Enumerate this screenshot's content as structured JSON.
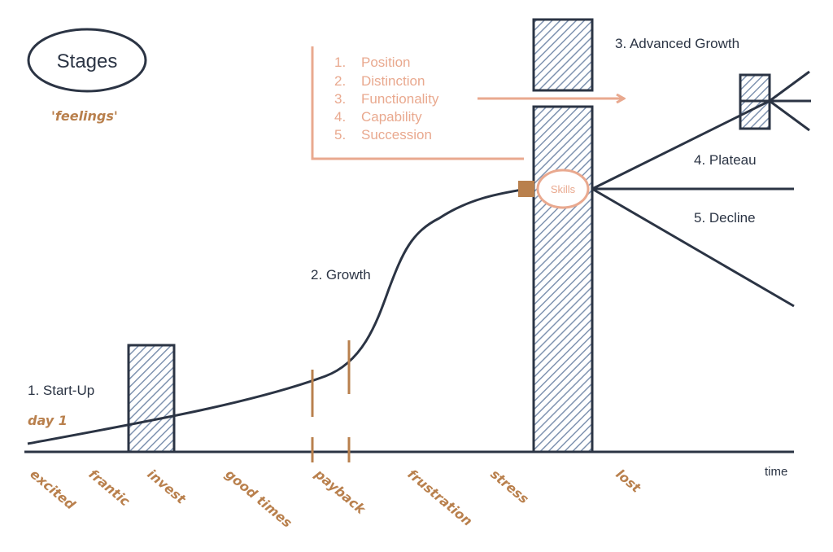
{
  "title": "Stages",
  "subtitle": "'feelings'",
  "stages": {
    "startup": "1. Start-Up",
    "growth": "2. Growth",
    "advanced_growth": "3. Advanced Growth",
    "plateau": "4. Plateau",
    "decline": "5. Decline"
  },
  "day_label": "day 1",
  "list": {
    "numbers": [
      "1.",
      "2.",
      "3.",
      "4.",
      "5."
    ],
    "items": [
      "Position",
      "Distinction",
      "Functionality",
      "Capability",
      "Succession"
    ]
  },
  "skills_label": "Skills",
  "axis": {
    "x_label": "time"
  },
  "feelings": [
    "excited",
    "frantic",
    "invest",
    "good times",
    "payback",
    "frustration",
    "stress",
    "lost"
  ],
  "colors": {
    "navy": "#2b3444",
    "salmon": "#e9a98f",
    "brown": "#b9804d",
    "hatch": "#7f93b0"
  }
}
